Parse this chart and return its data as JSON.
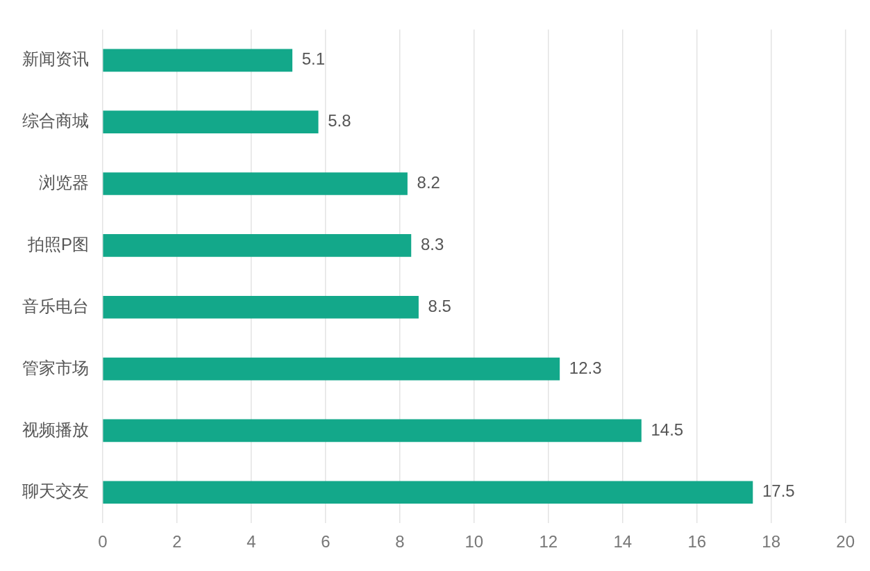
{
  "chart_data": {
    "type": "bar",
    "orientation": "horizontal",
    "categories": [
      "新闻资讯",
      "综合商城",
      "浏览器",
      "拍照P图",
      "音乐电台",
      "管家市场",
      "视频播放",
      "聊天交友"
    ],
    "values": [
      5.1,
      5.8,
      8.2,
      8.3,
      8.5,
      12.3,
      14.5,
      17.5
    ],
    "color": "#13a88a",
    "xlim": [
      0,
      20
    ],
    "xticks": [
      0,
      2,
      4,
      6,
      8,
      10,
      12,
      14,
      16,
      18,
      20
    ],
    "grid": "x",
    "data_labels": true
  }
}
